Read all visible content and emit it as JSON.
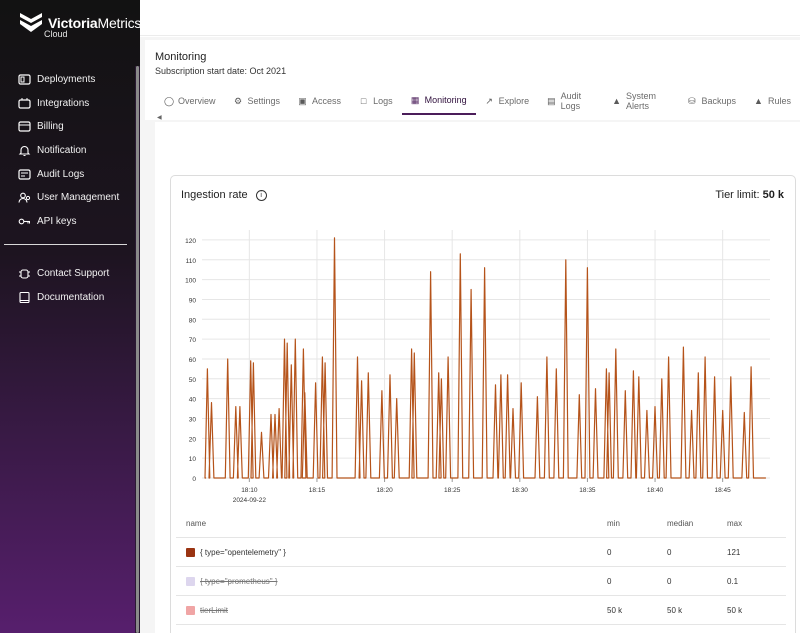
{
  "brand": {
    "name_bold": "Victoria",
    "name_rest": "Metrics",
    "sub": "Cloud"
  },
  "sidebar": {
    "items": [
      {
        "label": "Deployments",
        "icon": "deployments-icon"
      },
      {
        "label": "Integrations",
        "icon": "integrations-icon"
      },
      {
        "label": "Billing",
        "icon": "billing-icon"
      },
      {
        "label": "Notification",
        "icon": "bell-icon"
      },
      {
        "label": "Audit Logs",
        "icon": "audit-logs-icon"
      },
      {
        "label": "User Management",
        "icon": "users-icon"
      },
      {
        "label": "API keys",
        "icon": "key-icon"
      }
    ],
    "bottom_items": [
      {
        "label": "Contact Support",
        "icon": "support-icon"
      },
      {
        "label": "Documentation",
        "icon": "book-icon"
      }
    ]
  },
  "header": {
    "title": "Monitoring",
    "subtitle": "Subscription start date: Oct 2021"
  },
  "tabs": [
    {
      "label": "Overview",
      "icon": "overview-icon"
    },
    {
      "label": "Settings",
      "icon": "gear-icon"
    },
    {
      "label": "Access",
      "icon": "lock-icon"
    },
    {
      "label": "Logs",
      "icon": "logs-icon"
    },
    {
      "label": "Monitoring",
      "icon": "grid-icon",
      "active": true
    },
    {
      "label": "Explore",
      "icon": "chart-icon"
    },
    {
      "label": "Audit Logs",
      "icon": "audit-icon"
    },
    {
      "label": "System Alerts",
      "icon": "warning-icon"
    },
    {
      "label": "Backups",
      "icon": "database-icon"
    },
    {
      "label": "Rules",
      "icon": "bell-icon"
    }
  ],
  "card": {
    "title": "Ingestion rate",
    "tier_label": "Tier limit:",
    "tier_value": "50 k"
  },
  "chart_data": {
    "type": "line",
    "title": "Ingestion rate",
    "ylim": [
      0,
      125
    ],
    "yticks": [
      0,
      10,
      20,
      30,
      40,
      50,
      60,
      70,
      80,
      90,
      100,
      110,
      120
    ],
    "xticks": [
      {
        "label": "18:10",
        "label2": "2024-09-22",
        "minute": 10
      },
      {
        "label": "18:15",
        "minute": 15
      },
      {
        "label": "18:20",
        "minute": 20
      },
      {
        "label": "18:25",
        "minute": 25
      },
      {
        "label": "18:30",
        "minute": 30
      },
      {
        "label": "18:35",
        "minute": 35
      },
      {
        "label": "18:40",
        "minute": 40
      },
      {
        "label": "18:45",
        "minute": 45
      }
    ],
    "xrange_minutes": [
      6.5,
      48.5
    ],
    "grid": true,
    "series": [
      {
        "name": "{ type=\"opentelemetry\" }",
        "color": "#b5531a",
        "spikes": [
          [
            6.9,
            55
          ],
          [
            7.2,
            38
          ],
          [
            8.4,
            60
          ],
          [
            9.0,
            36
          ],
          [
            9.3,
            36
          ],
          [
            10.1,
            59
          ],
          [
            10.3,
            58
          ],
          [
            10.9,
            23
          ],
          [
            11.6,
            32
          ],
          [
            11.9,
            32
          ],
          [
            12.2,
            35
          ],
          [
            12.6,
            70
          ],
          [
            12.8,
            68
          ],
          [
            13.1,
            57
          ],
          [
            13.4,
            70
          ],
          [
            14.0,
            65
          ],
          [
            14.1,
            43
          ],
          [
            14.9,
            48
          ],
          [
            15.4,
            61
          ],
          [
            15.6,
            58
          ],
          [
            16.3,
            121
          ],
          [
            18.0,
            61
          ],
          [
            18.3,
            49
          ],
          [
            18.8,
            53
          ],
          [
            19.8,
            44
          ],
          [
            20.4,
            52
          ],
          [
            20.9,
            40
          ],
          [
            22.0,
            65
          ],
          [
            22.2,
            63
          ],
          [
            23.4,
            104
          ],
          [
            24.0,
            53
          ],
          [
            24.2,
            50
          ],
          [
            24.7,
            61
          ],
          [
            25.6,
            113
          ],
          [
            26.4,
            95
          ],
          [
            27.4,
            106
          ],
          [
            28.2,
            47
          ],
          [
            28.6,
            52
          ],
          [
            29.1,
            52
          ],
          [
            29.5,
            35
          ],
          [
            30.1,
            48
          ],
          [
            31.3,
            41
          ],
          [
            32.0,
            61
          ],
          [
            32.7,
            55
          ],
          [
            33.4,
            110
          ],
          [
            34.4,
            42
          ],
          [
            35.0,
            106
          ],
          [
            35.6,
            45
          ],
          [
            36.4,
            55
          ],
          [
            36.6,
            53
          ],
          [
            37.1,
            65
          ],
          [
            37.8,
            44
          ],
          [
            38.4,
            54
          ],
          [
            38.8,
            51
          ],
          [
            39.4,
            34
          ],
          [
            40.0,
            36
          ],
          [
            40.5,
            50
          ],
          [
            41.0,
            61
          ],
          [
            42.1,
            66
          ],
          [
            42.7,
            34
          ],
          [
            43.2,
            53
          ],
          [
            43.7,
            61
          ],
          [
            44.4,
            51
          ],
          [
            45.0,
            34
          ],
          [
            45.6,
            51
          ],
          [
            46.6,
            33
          ],
          [
            47.1,
            56
          ]
        ]
      }
    ]
  },
  "legend": {
    "headers": {
      "name": "name",
      "min": "min",
      "median": "median",
      "max": "max"
    },
    "rows": [
      {
        "name": "{ type=\"opentelemetry\" }",
        "color": "#9a3412",
        "min": "0",
        "median": "0",
        "max": "121",
        "hidden": false
      },
      {
        "name": "{ type=\"prometheus\" }",
        "color": "#ddd6ee",
        "min": "0",
        "median": "0",
        "max": "0.1",
        "hidden": true
      },
      {
        "name": "tierLimit",
        "color": "#f0a5a5",
        "min": "50 k",
        "median": "50 k",
        "max": "50 k",
        "hidden": true
      }
    ]
  }
}
